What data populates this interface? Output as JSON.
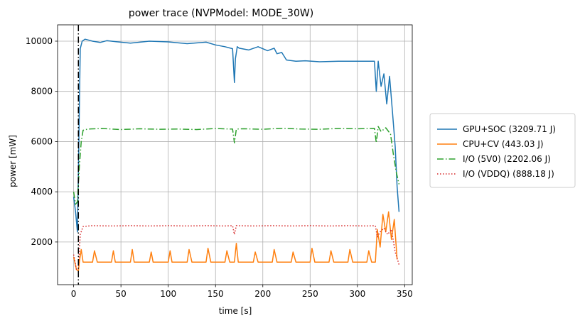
{
  "chart_data": {
    "type": "line",
    "title": "power trace (NVPModel: MODE_30W)",
    "xlabel": "time [s]",
    "ylabel": "power [mW]",
    "xlim": [
      -17,
      358
    ],
    "ylim": [
      300,
      10650
    ],
    "xticks": [
      0,
      50,
      100,
      150,
      200,
      250,
      300,
      350
    ],
    "yticks": [
      2000,
      4000,
      6000,
      8000,
      10000
    ],
    "grid": true,
    "legend_position": "outside-right",
    "marker_line": {
      "x": 5,
      "style": "dash-dot",
      "color": "#000000"
    },
    "series": [
      {
        "name": "GPU+SOC (3209.71 J)",
        "color": "#1f77b4",
        "dash": "solid",
        "x": [
          0,
          2,
          4,
          5,
          7,
          9,
          12,
          15,
          20,
          28,
          35,
          45,
          60,
          80,
          100,
          120,
          140,
          150,
          160,
          168,
          170,
          171,
          173,
          175,
          185,
          195,
          205,
          212,
          215,
          220,
          225,
          235,
          245,
          260,
          280,
          300,
          318,
          320,
          322,
          325,
          328,
          331,
          334,
          337,
          340,
          342,
          344
        ],
        "y": [
          3800,
          3200,
          2400,
          4800,
          9700,
          10000,
          10080,
          10050,
          10000,
          9950,
          10020,
          9980,
          9920,
          10000,
          9970,
          9900,
          9960,
          9850,
          9780,
          9700,
          8350,
          9300,
          9780,
          9720,
          9650,
          9780,
          9620,
          9720,
          9500,
          9550,
          9250,
          9200,
          9220,
          9180,
          9200,
          9200,
          9200,
          8000,
          9200,
          8200,
          8700,
          7500,
          8600,
          7200,
          5800,
          4200,
          3200
        ]
      },
      {
        "name": "CPU+CV (443.03 J)",
        "color": "#ff7f0e",
        "dash": "solid",
        "x": [
          0,
          3,
          5,
          6,
          8,
          10,
          12,
          20,
          22,
          25,
          40,
          42,
          44,
          60,
          62,
          64,
          80,
          82,
          84,
          100,
          102,
          104,
          120,
          122,
          125,
          140,
          142,
          145,
          160,
          162,
          165,
          170,
          172,
          174,
          176,
          190,
          192,
          195,
          210,
          212,
          215,
          230,
          232,
          235,
          250,
          252,
          255,
          270,
          272,
          275,
          290,
          292,
          295,
          310,
          312,
          315,
          319,
          321,
          324,
          327,
          330,
          333,
          336,
          339,
          342
        ],
        "y": [
          1400,
          900,
          850,
          1200,
          1700,
          1200,
          1200,
          1200,
          1650,
          1200,
          1200,
          1650,
          1200,
          1200,
          1700,
          1200,
          1200,
          1600,
          1200,
          1200,
          1650,
          1200,
          1200,
          1700,
          1200,
          1200,
          1750,
          1200,
          1200,
          1650,
          1200,
          1200,
          1950,
          1200,
          1200,
          1200,
          1600,
          1200,
          1200,
          1700,
          1200,
          1200,
          1600,
          1200,
          1200,
          1750,
          1200,
          1200,
          1650,
          1200,
          1200,
          1700,
          1200,
          1200,
          1650,
          1200,
          1200,
          2500,
          1800,
          3100,
          2400,
          3200,
          2100,
          2900,
          1300
        ]
      },
      {
        "name": "I/O (5V0) (2202.06 J)",
        "color": "#2ca02c",
        "dash": "dash-dot",
        "x": [
          0,
          2,
          4,
          6,
          8,
          10,
          15,
          30,
          50,
          70,
          90,
          110,
          130,
          150,
          165,
          168,
          170,
          172,
          180,
          200,
          220,
          240,
          260,
          280,
          300,
          318,
          320,
          322,
          325,
          330,
          335,
          338,
          341,
          344
        ],
        "y": [
          4000,
          3500,
          3600,
          5000,
          6000,
          6450,
          6500,
          6520,
          6480,
          6510,
          6490,
          6500,
          6480,
          6520,
          6500,
          6500,
          5950,
          6500,
          6510,
          6490,
          6530,
          6500,
          6490,
          6520,
          6510,
          6530,
          5950,
          6600,
          6400,
          6550,
          6300,
          5500,
          4800,
          4300
        ]
      },
      {
        "name": "I/O (VDDQ) (888.18 J)",
        "color": "#d62728",
        "dash": "dotted",
        "x": [
          0,
          3,
          5,
          7,
          10,
          20,
          40,
          60,
          80,
          100,
          120,
          140,
          160,
          168,
          170,
          172,
          190,
          210,
          230,
          250,
          270,
          290,
          310,
          319,
          321,
          324,
          328,
          332,
          336,
          340,
          344
        ],
        "y": [
          1500,
          900,
          950,
          2300,
          2620,
          2650,
          2640,
          2650,
          2640,
          2650,
          2640,
          2650,
          2640,
          2650,
          2300,
          2650,
          2640,
          2650,
          2640,
          2650,
          2640,
          2650,
          2640,
          2650,
          2200,
          2400,
          2550,
          2300,
          2500,
          1600,
          1100
        ]
      }
    ]
  }
}
